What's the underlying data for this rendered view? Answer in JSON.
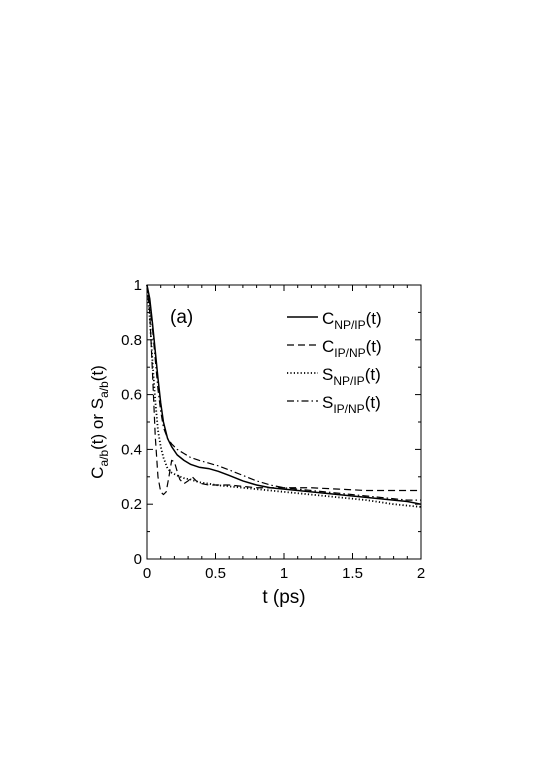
{
  "chart_data": {
    "type": "line",
    "panel_label": "(a)",
    "xlabel": "t (ps)",
    "ylabel": {
      "parts": [
        {
          "text": "C",
          "sub": "a/b"
        },
        {
          "text": "(t) or S"
        },
        {
          "text": "",
          "sub": "a/b"
        },
        {
          "text": "(t)"
        }
      ]
    },
    "xlim": [
      0,
      2
    ],
    "ylim": [
      0,
      1
    ],
    "xticks": [
      {
        "value": 0,
        "label": "0"
      },
      {
        "value": 0.5,
        "label": "0.5"
      },
      {
        "value": 1,
        "label": "1"
      },
      {
        "value": 1.5,
        "label": "1.5"
      },
      {
        "value": 2,
        "label": "2"
      }
    ],
    "yticks": [
      {
        "value": 0,
        "label": "0"
      },
      {
        "value": 0.2,
        "label": "0.2"
      },
      {
        "value": 0.4,
        "label": "0.4"
      },
      {
        "value": 0.6,
        "label": "0.6"
      },
      {
        "value": 0.8,
        "label": "0.8"
      },
      {
        "value": 1,
        "label": "1"
      }
    ],
    "grid": false,
    "legend_position": "top-right",
    "series": [
      {
        "name": "C_NP/IP(t)",
        "label_main": "C",
        "label_sub": "NP/IP",
        "label_tail": "(t)",
        "style": "solid",
        "x": [
          0,
          0.02,
          0.04,
          0.06,
          0.08,
          0.1,
          0.12,
          0.15,
          0.18,
          0.22,
          0.27,
          0.32,
          0.38,
          0.45,
          0.52,
          0.6,
          0.7,
          0.8,
          0.9,
          1.0,
          1.1,
          1.2,
          1.3,
          1.4,
          1.5,
          1.6,
          1.7,
          1.8,
          1.9,
          2.0
        ],
        "y": [
          1.0,
          0.95,
          0.86,
          0.76,
          0.66,
          0.57,
          0.5,
          0.44,
          0.41,
          0.38,
          0.36,
          0.345,
          0.335,
          0.33,
          0.32,
          0.305,
          0.285,
          0.27,
          0.26,
          0.255,
          0.25,
          0.245,
          0.24,
          0.235,
          0.23,
          0.225,
          0.22,
          0.215,
          0.21,
          0.2
        ]
      },
      {
        "name": "C_IP/NP(t)",
        "label_main": "C",
        "label_sub": "IP/NP",
        "label_tail": "(t)",
        "style": "dashed",
        "x": [
          0,
          0.02,
          0.04,
          0.06,
          0.08,
          0.1,
          0.12,
          0.14,
          0.16,
          0.18,
          0.2,
          0.22,
          0.24,
          0.27,
          0.3,
          0.33,
          0.36,
          0.4,
          0.45,
          0.5,
          0.6,
          0.7,
          0.8,
          0.9,
          1.0,
          1.2,
          1.4,
          1.6,
          1.8,
          2.0
        ],
        "y": [
          1.0,
          0.9,
          0.68,
          0.45,
          0.3,
          0.245,
          0.235,
          0.245,
          0.3,
          0.36,
          0.355,
          0.32,
          0.29,
          0.275,
          0.285,
          0.3,
          0.285,
          0.275,
          0.27,
          0.27,
          0.27,
          0.265,
          0.26,
          0.26,
          0.26,
          0.26,
          0.255,
          0.25,
          0.25,
          0.25
        ]
      },
      {
        "name": "S_NP/IP(t)",
        "label_main": "S",
        "label_sub": "NP/IP",
        "label_tail": "(t)",
        "style": "dotted",
        "x": [
          0,
          0.02,
          0.04,
          0.06,
          0.08,
          0.1,
          0.12,
          0.15,
          0.18,
          0.22,
          0.27,
          0.32,
          0.38,
          0.45,
          0.5,
          0.6,
          0.7,
          0.8,
          0.9,
          1.0,
          1.2,
          1.4,
          1.6,
          1.8,
          2.0
        ],
        "y": [
          1.0,
          0.88,
          0.72,
          0.58,
          0.47,
          0.41,
          0.37,
          0.33,
          0.315,
          0.305,
          0.295,
          0.29,
          0.28,
          0.275,
          0.27,
          0.265,
          0.26,
          0.255,
          0.25,
          0.245,
          0.235,
          0.225,
          0.215,
          0.2,
          0.19
        ]
      },
      {
        "name": "S_IP/NP(t)",
        "label_main": "S",
        "label_sub": "IP/NP",
        "label_tail": "(t)",
        "style": "dashdot",
        "x": [
          0,
          0.02,
          0.04,
          0.06,
          0.08,
          0.1,
          0.12,
          0.15,
          0.18,
          0.22,
          0.27,
          0.32,
          0.38,
          0.45,
          0.52,
          0.6,
          0.7,
          0.8,
          0.9,
          1.0,
          1.1,
          1.2,
          1.3,
          1.4,
          1.5,
          1.6,
          1.7,
          1.8,
          1.9,
          2.0
        ],
        "y": [
          1.0,
          0.93,
          0.84,
          0.73,
          0.62,
          0.54,
          0.48,
          0.44,
          0.42,
          0.4,
          0.385,
          0.37,
          0.36,
          0.35,
          0.34,
          0.325,
          0.305,
          0.285,
          0.27,
          0.26,
          0.255,
          0.25,
          0.245,
          0.24,
          0.235,
          0.23,
          0.225,
          0.22,
          0.215,
          0.215
        ]
      }
    ]
  }
}
